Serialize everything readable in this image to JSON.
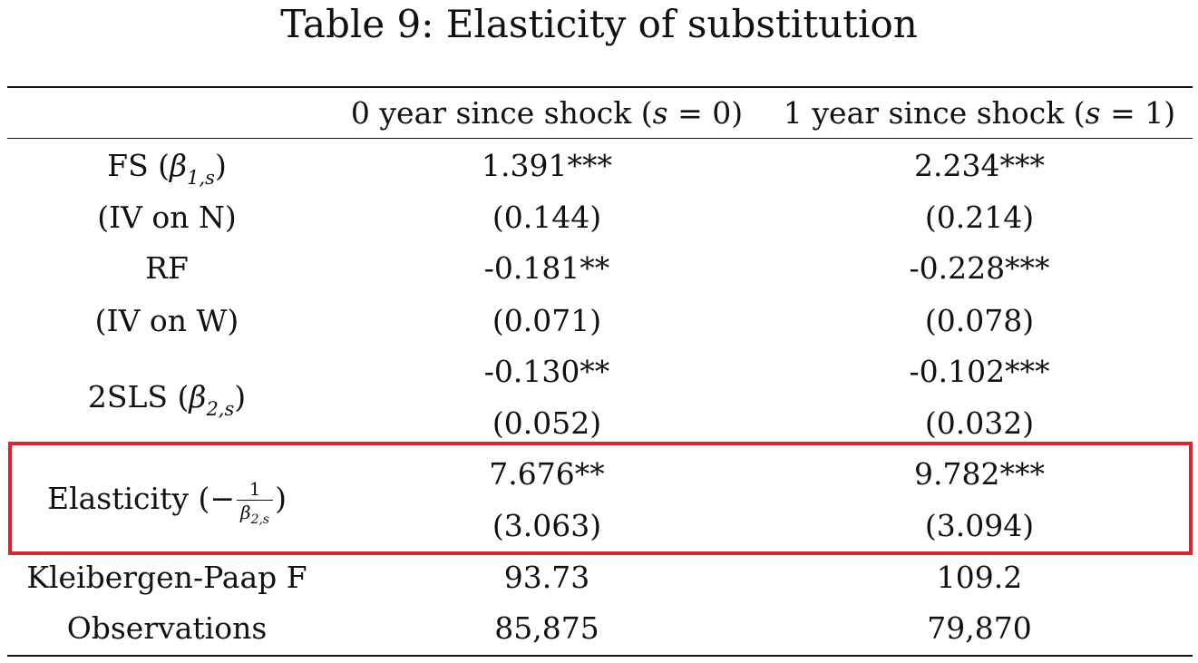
{
  "table": {
    "caption": "Table 9:  Elasticity of substitution",
    "columns": [
      {
        "prefix": "0 year since shock (",
        "var": "s",
        "eq": " = 0)"
      },
      {
        "prefix": "1 year since shock (",
        "var": "s",
        "eq": " = 1)"
      }
    ],
    "rows": {
      "fs": {
        "label": "FS (",
        "sym": "β",
        "sub": "1,s",
        "close": ")",
        "col0": "1.391***",
        "col1": "2.234***"
      },
      "fs_se": {
        "label": "(IV on N)",
        "col0": "(0.144)",
        "col1": "(0.214)"
      },
      "rf": {
        "label": "RF",
        "col0": "-0.181**",
        "col1": "-0.228***"
      },
      "rf_se": {
        "label": "(IV on W)",
        "col0": "(0.071)",
        "col1": "(0.078)"
      },
      "tsls": {
        "label": "2SLS (",
        "sym": "β",
        "sub": "2,s",
        "close": ")",
        "col0": "-0.130**",
        "col1": "-0.102***",
        "col0_se": "(0.052)",
        "col1_se": "(0.032)"
      },
      "elasticity": {
        "label": "Elasticity (−",
        "frac_num": "1",
        "frac_den_sym": "β",
        "frac_den_sub": "2,s",
        "close": ")",
        "col0": "7.676**",
        "col1": "9.782***",
        "col0_se": "(3.063)",
        "col1_se": "(3.094)"
      },
      "kp": {
        "label": "Kleibergen-Paap F",
        "col0": "93.73",
        "col1": "109.2"
      },
      "obs": {
        "label": "Observations",
        "col0": "85,875",
        "col1": "79,870"
      }
    }
  },
  "colors": {
    "text": "#111111",
    "highlight_border": "#d8262f",
    "background": "#ffffff"
  }
}
